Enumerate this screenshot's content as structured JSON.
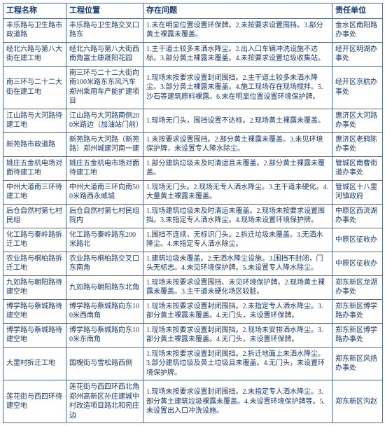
{
  "headers": [
    "工程名称",
    "工程位置",
    "存在问题",
    "责任单位"
  ],
  "rows": [
    {
      "name": "丰乐路与卫生路市政道路",
      "loc": "丰乐路与卫生路交叉口路东",
      "issue": "1.未在明显位置设置环保牌。2.未按要求设置围挡。3.部分黄土裸露未覆盖。",
      "unit": "金水区南阳路办事处"
    },
    {
      "name": "经北六路与第八大街在建工地",
      "loc": "经北六路与第八大街西南角富士康晟阳花园",
      "issue": "1.主干道土较多未洒水降尘。2.出入口车辆冲洗设施不达标。3.部分黄土裸露未覆盖。4.未按要求设置垃圾收集站。",
      "unit": "经开区明湖办事处"
    },
    {
      "name": "南三环与二十二大街在建工地",
      "loc": "南三环与二十二大街向南100米路东东风汽车郑州乘用车产能扩建项目",
      "issue": "1.现场未按要求设置封闭围挡。2.主干道土较多未洒水降尘。3.部分黄土裸露未覆盖。4.施工现场存在现场搅拌。5.沙石等建筑原料裸露。6.未在明显位置设置环境保护牌。",
      "unit": "经开区京航办事处"
    },
    {
      "name": "江山路与大河路待建工地",
      "loc": "江山路与大河路南侧200米路边（加油站门前）",
      "issue": "1.现场无门头，围挡设置不达标。2.现场黄土裸露未覆盖。",
      "unit": "惠济区大河路办事处"
    },
    {
      "name": "新苑路市政道路",
      "loc": "新苑路与大河路（新苑路）郑州城建河南一建",
      "issue": "1.未按要求设置围挡。2.部分黄土裸露未覆盖。3.未见环境保护牌，未设置专人降水除尘。",
      "unit": "惠济区老鸦陈办事处"
    },
    {
      "name": "姚庄五金机电场对面待建工地",
      "loc": "姚庄五金机电市场对面待建工地",
      "issue": "1.部分建筑垃圾未及时清运且未覆盖。2.部分黄土裸露未覆盖。",
      "unit": "管城区南曹街道办事处"
    },
    {
      "name": "中州大道南三环待建工地",
      "loc": "中州大道南三环向南500米路西永威城",
      "issue": "1.现场无门头。2.现场无专人洒水降尘。3.主干道未硬化。4.大量黄土裸露未覆盖。",
      "unit": "管城区十八里河镇政府"
    },
    {
      "name": "后仓自然村第七村民组",
      "loc": "后仓自然村第七村民组院内",
      "issue": "1.现场建筑垃圾未及时清运未覆盖。2.现场未按要求设置围挡。3.未指定专人洒水降尘。4.现场未设置环境保护牌。",
      "unit": "中原区西流湖办事处"
    },
    {
      "name": "化工路与秦岭路拆迁工地",
      "loc": "化工路与秦岭路东200米路北",
      "issue": "1.围挡不连续，无标识门头。2.拆迁垃圾未覆盖。3.无洒水降尘。4.未指定专人洒水除尘。",
      "unit": "中原区征收办"
    },
    {
      "name": "农业路与桐柏路拆迁工地",
      "loc": "农业路与桐柏路交叉口东南角",
      "issue": "1.建筑垃圾未覆盖。2.无洒水降尘设施。3.围挡不封闭，门头无标志。4.未见环境保护牌。5.未设置专人降水除尘。",
      "unit": "中原区征收办"
    },
    {
      "name": "九如路与朝阳路待建空地",
      "loc": "九如路与朝阳路东北角",
      "issue": "1.现场未按要求设置围挡、未见环境保护牌。2.现场黄土裸露未覆盖。3.主干道未硬化场区较脏。",
      "unit": "郑东新区龙湖办事处"
    },
    {
      "name": "博学路与蔡城路待建空地",
      "loc": "博学路与蔡城路向东100米西南角",
      "issue": "1.现场未按要求设置封闭围挡。2.未指定专人洒水降尘。3.部分黄土裸露未覆盖。4.无门头，未设置环保牌。",
      "unit": "郑东新区博学路办事处"
    },
    {
      "name": "博学路与蔡城路待建空地",
      "loc": "博学路与蔡城路向东100米东南角",
      "issue": "1.现场未按要求设置封闭围挡。2.现场未安排洒水降尘。3.部分黄土裸露未覆盖。4.无门头，未设置环保牌。",
      "unit": "郑东新区博学路办事处"
    },
    {
      "name": "大里村拆迁工地",
      "loc": "国槐街与雪松路西侧",
      "issue": "1.现场未按要求设置封闭围挡。2.拆迁地面上未洒水降尘。3.部分建筑垃圾及黄土垃圾且未覆盖。4.无门头，未设置环境保护牌。",
      "unit": "郑东新区风扬办事处"
    },
    {
      "name": "莲花街与西四环待建空地",
      "loc": "莲花街与西四环西北角郑州高新区孙庄建城中村改造项目路北和宛庄边",
      "issue": "1.现场未按要求设置封闭围挡。2.未指定专人洒水降尘。3.部分黄土建筑垃圾裸露未覆盖。4.未设置环境保护牌等。5.未设置出入口冲洗设施。",
      "unit": "郑东新区沟赵"
    }
  ]
}
